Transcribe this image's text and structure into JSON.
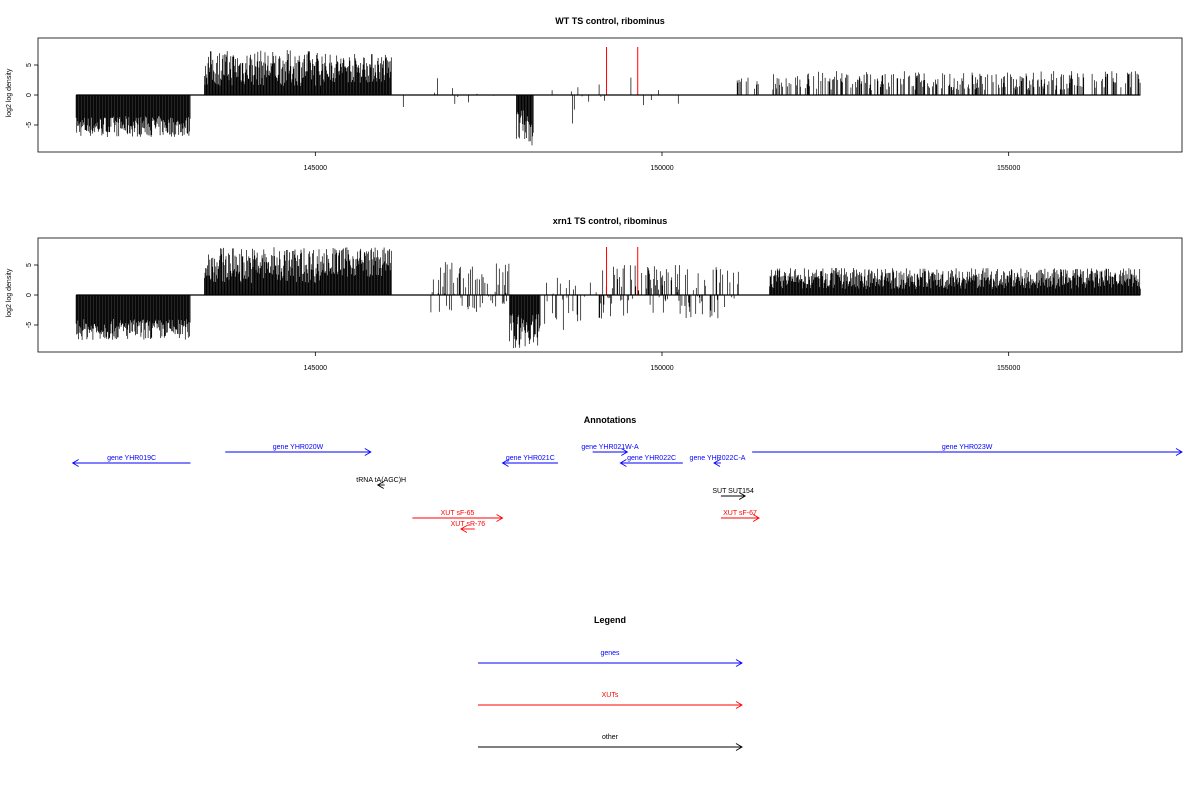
{
  "chart_data": [
    {
      "type": "bar",
      "title": "WT TS control, ribominus",
      "ylabel": "log2 log density",
      "xlabel": "",
      "xlim": [
        141000,
        157500
      ],
      "ylim": [
        -9.5,
        9.5
      ],
      "x_ticks": [
        145000,
        150000,
        155000
      ],
      "x_tick_labels": [
        "145000",
        "150000",
        "155000"
      ],
      "y_ticks": [
        5,
        0,
        -5
      ],
      "y_tick_labels": [
        "5",
        "0",
        "-5"
      ],
      "x_range": [
        141550,
        156900
      ],
      "grid": false,
      "red_marks": [
        {
          "x": 149200,
          "value": 8
        },
        {
          "x": 149650,
          "value": 8
        }
      ],
      "segments": [
        {
          "start": 141550,
          "end": 143200,
          "min": -7,
          "max": -3.5,
          "density": 1
        },
        {
          "start": 143400,
          "end": 145100,
          "min": 1.5,
          "max": 7.5,
          "density": 1
        },
        {
          "start": 145100,
          "end": 146100,
          "min": 2,
          "max": 7,
          "density": 1
        },
        {
          "start": 146200,
          "end": 146550,
          "min": -2,
          "max": -2,
          "density": 0.02
        },
        {
          "start": 146700,
          "end": 147700,
          "min": -2.5,
          "max": 3,
          "density": 0.06
        },
        {
          "start": 147900,
          "end": 148150,
          "min": -8.5,
          "max": -2.5,
          "density": 1
        },
        {
          "start": 148250,
          "end": 148950,
          "min": -5,
          "max": 1.5,
          "density": 0.1
        },
        {
          "start": 149050,
          "end": 150600,
          "min": -2,
          "max": 3,
          "density": 0.05
        },
        {
          "start": 151050,
          "end": 151400,
          "min": 0.5,
          "max": 3,
          "density": 0.25
        },
        {
          "start": 151600,
          "end": 156900,
          "min": 0.8,
          "max": 4,
          "density": 0.45
        }
      ]
    },
    {
      "type": "bar",
      "title": "xrn1 TS control, ribominus",
      "ylabel": "log2 log density",
      "xlabel": "",
      "xlim": [
        141000,
        157500
      ],
      "ylim": [
        -9.5,
        9.5
      ],
      "x_ticks": [
        145000,
        150000,
        155000
      ],
      "x_tick_labels": [
        "145000",
        "150000",
        "155000"
      ],
      "y_ticks": [
        5,
        0,
        -5
      ],
      "y_tick_labels": [
        "5",
        "0",
        "-5"
      ],
      "x_range": [
        141550,
        156900
      ],
      "grid": false,
      "red_marks": [
        {
          "x": 149200,
          "value": 8
        },
        {
          "x": 149650,
          "value": 8
        }
      ],
      "segments": [
        {
          "start": 141550,
          "end": 143200,
          "min": -7.5,
          "max": -4,
          "density": 1
        },
        {
          "start": 143400,
          "end": 145100,
          "min": 2,
          "max": 8,
          "density": 1
        },
        {
          "start": 145100,
          "end": 146100,
          "min": 3,
          "max": 8,
          "density": 1
        },
        {
          "start": 146650,
          "end": 147800,
          "min": -3,
          "max": 5.5,
          "density": 0.5
        },
        {
          "start": 147800,
          "end": 148250,
          "min": -9,
          "max": -3,
          "density": 1
        },
        {
          "start": 148300,
          "end": 149000,
          "min": -6,
          "max": 3,
          "density": 0.25
        },
        {
          "start": 149050,
          "end": 151200,
          "min": -4,
          "max": 5,
          "density": 0.45
        },
        {
          "start": 151550,
          "end": 156900,
          "min": 1,
          "max": 4.5,
          "density": 1
        }
      ]
    }
  ],
  "annotations": {
    "title": "Annotations",
    "tracks": [
      {
        "label": "gene YHR019C",
        "start": 141500,
        "end": 143200,
        "row": 0,
        "dir": "left",
        "cat": "genes"
      },
      {
        "label": "gene YHR020W",
        "start": 143700,
        "end": 145800,
        "row": -1,
        "dir": "right",
        "cat": "genes"
      },
      {
        "label": "gene YHR021C",
        "start": 147700,
        "end": 148500,
        "row": 0,
        "dir": "left",
        "cat": "genes"
      },
      {
        "label": "gene YHR021W-A",
        "start": 149000,
        "end": 149500,
        "row": -1,
        "dir": "right",
        "cat": "genes"
      },
      {
        "label": "gene YHR022C",
        "start": 149400,
        "end": 150300,
        "row": 0,
        "dir": "left",
        "cat": "genes"
      },
      {
        "label": "gene YHR022C-A",
        "start": 150750,
        "end": 150850,
        "row": 0,
        "dir": "left",
        "cat": "genes"
      },
      {
        "label": "gene YHR023W",
        "start": 151300,
        "end": 157500,
        "row": -1,
        "dir": "right",
        "cat": "genes"
      },
      {
        "label": "tRNA tA(AGC)H",
        "start": 145900,
        "end": 146000,
        "row": 2,
        "dir": "left",
        "cat": "other"
      },
      {
        "label": "SUT SUT154",
        "start": 150850,
        "end": 151200,
        "row": 3,
        "dir": "right",
        "cat": "other"
      },
      {
        "label": "XUT sF-65",
        "start": 146400,
        "end": 147700,
        "row": 5,
        "dir": "right",
        "cat": "XUTs"
      },
      {
        "label": "XUT sR-76",
        "start": 147100,
        "end": 147300,
        "row": 6,
        "dir": "left",
        "cat": "XUTs"
      },
      {
        "label": "XUT sF-67",
        "start": 150850,
        "end": 151400,
        "row": 5,
        "dir": "right",
        "cat": "XUTs"
      }
    ]
  },
  "legend": {
    "title": "Legend",
    "items": [
      {
        "label": "genes",
        "cat": "genes"
      },
      {
        "label": "XUTs",
        "cat": "XUTs"
      },
      {
        "label": "other",
        "cat": "other"
      }
    ]
  },
  "colors": {
    "genes": "#0000ff",
    "XUTs": "#ff0000",
    "other": "#000000",
    "highlight": "#ff0000",
    "bars": "#000000"
  }
}
